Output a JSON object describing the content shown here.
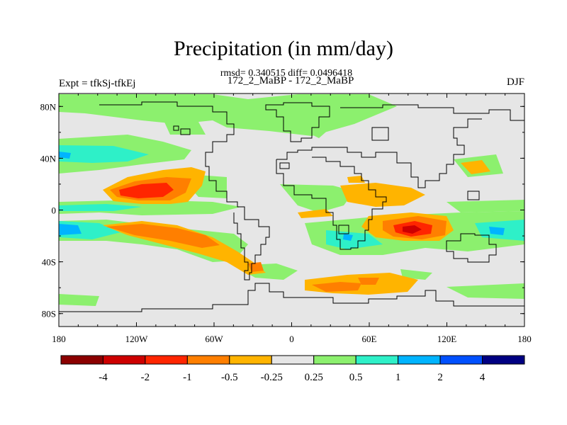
{
  "chart_data": {
    "type": "heatmap",
    "title": "Precipitation (in mm/day)",
    "stats_text": "rmsd= 0.340515 diff= 0.0496418",
    "center_subtitle": "172_2_MaBP - 172_2_MaBP",
    "left_subtitle": "Expt = tfkSj-tfkEj",
    "right_subtitle": "DJF",
    "x_ticks": [
      "180",
      "120W",
      "60W",
      "0",
      "60E",
      "120E",
      "180"
    ],
    "y_ticks": [
      "80N",
      "40N",
      "0",
      "40S",
      "80S"
    ],
    "xlim": [
      -180,
      180
    ],
    "ylim": [
      -90,
      90
    ],
    "colorbar": {
      "colors": [
        "#8b0000",
        "#cd0000",
        "#ff2500",
        "#ff7f00",
        "#ffb400",
        "#e6e6e6",
        "#8cf06e",
        "#2ef0c8",
        "#00b4ff",
        "#0050ff",
        "#000082"
      ],
      "labels": [
        "-4",
        "-2",
        "-1",
        "-0.5",
        "-0.25",
        "0.25",
        "0.5",
        "1",
        "2",
        "4"
      ]
    },
    "anomaly_regions": [
      {
        "name": "north-pacific-dry",
        "level": "-1",
        "lon": -115,
        "lat": 15,
        "extent_lon": 50,
        "extent_lat": 15
      },
      {
        "name": "south-pacific-dry",
        "level": "-1",
        "lon": -105,
        "lat": -22,
        "extent_lon": 60,
        "extent_lat": 15
      },
      {
        "name": "indian-ocean-dry",
        "level": "-2",
        "lon": 90,
        "lat": -18,
        "extent_lon": 40,
        "extent_lat": 14
      },
      {
        "name": "africa-dry",
        "level": "-0.5",
        "lon": 65,
        "lat": 10,
        "extent_lon": 45,
        "extent_lat": 8
      },
      {
        "name": "southern-ocean-dry",
        "level": "-0.5",
        "lon": 60,
        "lat": -60,
        "extent_lon": 45,
        "extent_lat": 10
      },
      {
        "name": "tropical-pacific-wet",
        "level": "0.5",
        "lon": -160,
        "lat": -15,
        "extent_lon": 40,
        "extent_lat": 10
      },
      {
        "name": "arctic-wet",
        "level": "0.25",
        "lon": 10,
        "lat": 80,
        "extent_lon": 70,
        "extent_lat": 8
      }
    ]
  }
}
